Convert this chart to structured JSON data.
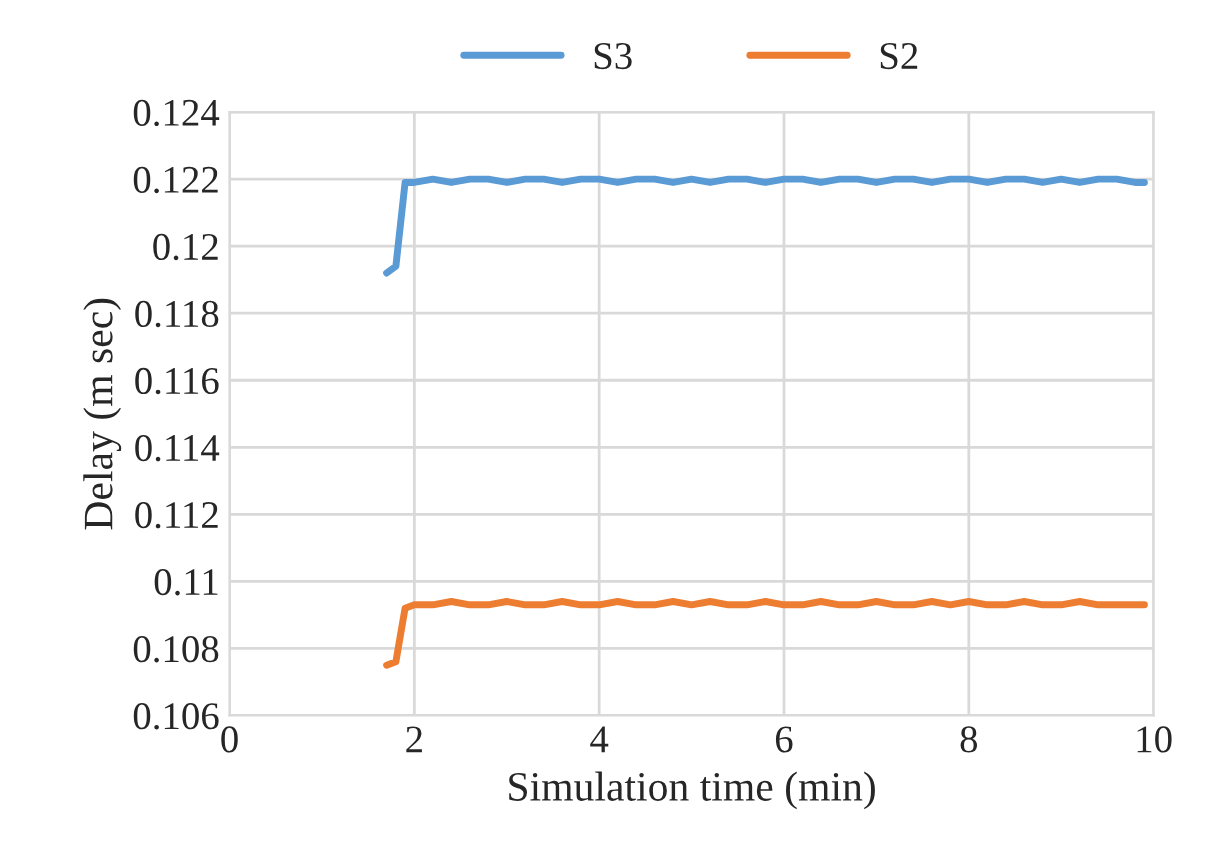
{
  "chart_data": {
    "type": "line",
    "xlabel": "Simulation time (min)",
    "ylabel": "Delay (m sec)",
    "x": [
      1.7,
      1.8,
      1.9,
      2.0,
      2.2,
      2.4,
      2.6,
      2.8,
      3.0,
      3.2,
      3.4,
      3.6,
      3.8,
      4.0,
      4.2,
      4.4,
      4.6,
      4.8,
      5.0,
      5.2,
      5.4,
      5.6,
      5.8,
      6.0,
      6.2,
      6.4,
      6.6,
      6.8,
      7.0,
      7.2,
      7.4,
      7.6,
      7.8,
      8.0,
      8.2,
      8.4,
      8.6,
      8.8,
      9.0,
      9.2,
      9.4,
      9.6,
      9.8,
      9.9
    ],
    "series": [
      {
        "name": "S3",
        "color": "#5b9bd5",
        "values": [
          0.1192,
          0.1194,
          0.1219,
          0.1219,
          0.122,
          0.1219,
          0.122,
          0.122,
          0.1219,
          0.122,
          0.122,
          0.1219,
          0.122,
          0.122,
          0.1219,
          0.122,
          0.122,
          0.1219,
          0.122,
          0.1219,
          0.122,
          0.122,
          0.1219,
          0.122,
          0.122,
          0.1219,
          0.122,
          0.122,
          0.1219,
          0.122,
          0.122,
          0.1219,
          0.122,
          0.122,
          0.1219,
          0.122,
          0.122,
          0.1219,
          0.122,
          0.1219,
          0.122,
          0.122,
          0.1219,
          0.1219
        ]
      },
      {
        "name": "S2",
        "color": "#ed7d31",
        "values": [
          0.1075,
          0.1076,
          0.1092,
          0.1093,
          0.1093,
          0.1094,
          0.1093,
          0.1093,
          0.1094,
          0.1093,
          0.1093,
          0.1094,
          0.1093,
          0.1093,
          0.1094,
          0.1093,
          0.1093,
          0.1094,
          0.1093,
          0.1094,
          0.1093,
          0.1093,
          0.1094,
          0.1093,
          0.1093,
          0.1094,
          0.1093,
          0.1093,
          0.1094,
          0.1093,
          0.1093,
          0.1094,
          0.1093,
          0.1094,
          0.1093,
          0.1093,
          0.1094,
          0.1093,
          0.1093,
          0.1094,
          0.1093,
          0.1093,
          0.1093,
          0.1093
        ]
      }
    ],
    "xlim": [
      0,
      10
    ],
    "xticks": [
      0,
      2,
      4,
      6,
      8,
      10
    ],
    "ylim": [
      0.106,
      0.124
    ],
    "yticks": [
      0.106,
      0.108,
      {
        "value": 0.11,
        "label": "0.11"
      },
      0.112,
      0.114,
      0.116,
      0.118,
      {
        "value": 0.12,
        "label": "0.12"
      },
      0.122,
      0.124
    ],
    "grid": true,
    "legend": "top",
    "marker": "none",
    "line_style": "solid"
  }
}
